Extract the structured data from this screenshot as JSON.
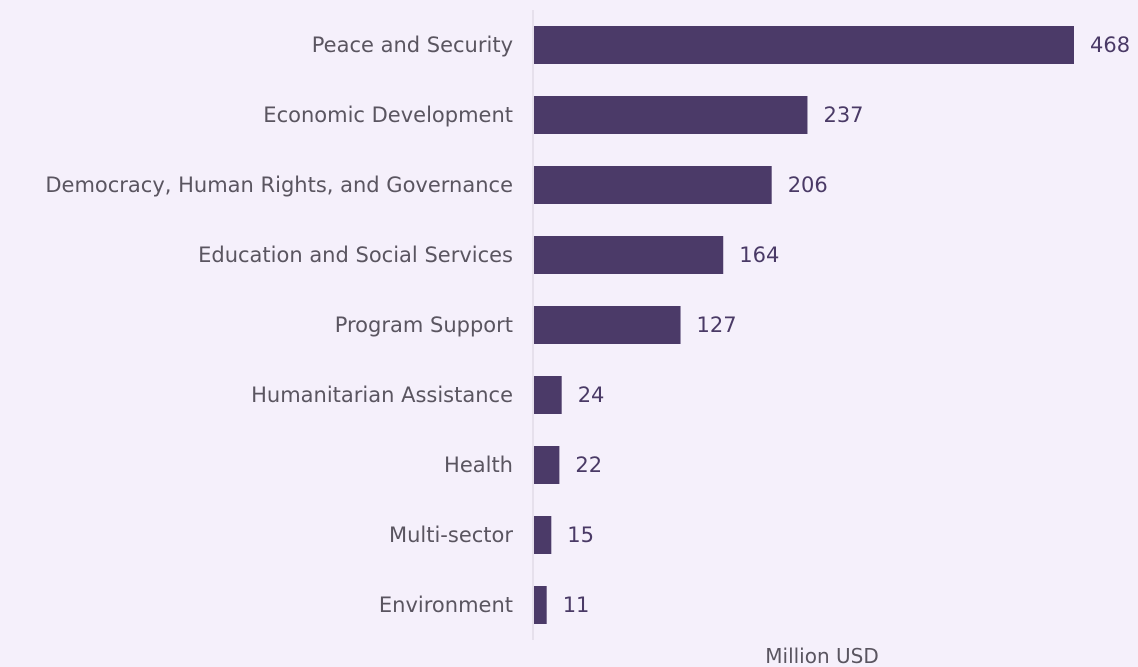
{
  "chart_data": {
    "type": "bar",
    "orientation": "horizontal",
    "categories": [
      "Peace and Security",
      "Economic Development",
      "Democracy, Human Rights, and Governance",
      "Education and Social Services",
      "Program Support",
      "Humanitarian Assistance",
      "Health",
      "Multi-sector",
      "Environment"
    ],
    "values": [
      468,
      237,
      206,
      164,
      127,
      24,
      22,
      15,
      11
    ],
    "value_labels": [
      "468",
      "237",
      "206",
      "164",
      "127",
      "24",
      "22",
      "15",
      "11"
    ],
    "title": "",
    "xlabel": "Million USD",
    "ylabel": "",
    "xlim": [
      0,
      468
    ],
    "grid": false,
    "legend": "none",
    "colors": {
      "background": "#f5f0fb",
      "bar": "#4b3a68",
      "axis_line": "#d6d0de",
      "value_text": "#4a3a66",
      "category_text": "#5a5560"
    }
  }
}
